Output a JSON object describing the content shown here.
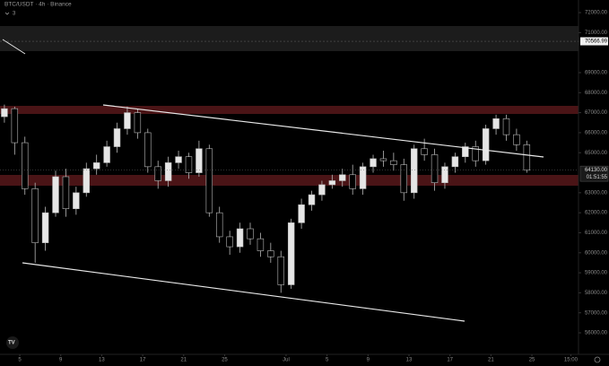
{
  "chart_data": {
    "type": "candlestick",
    "title": "BTC/USDT · 4h · Binance",
    "indicator_count": "3",
    "x": [
      3.5,
      4.5,
      5.5,
      6.5,
      7.5,
      8.5,
      9.5,
      10.5,
      11.5,
      12.5,
      13.5,
      14.5,
      15.5,
      16.5,
      17.5,
      18.5,
      19.5,
      20.5,
      21.5,
      22.5,
      23.5,
      24.5,
      25.5,
      26.5,
      27.5,
      28.5,
      29.5,
      30.5,
      31.5,
      32.5,
      33.5,
      34.5,
      35.5,
      36.5,
      37.5,
      38.5,
      39.5,
      40.5,
      41.5,
      42.5,
      43.5,
      44.5,
      45.5,
      46.5,
      47.5,
      48.5,
      49.5,
      50.5,
      51.5,
      52.5,
      53.5,
      54.5
    ],
    "open": [
      66800,
      67200,
      65500,
      63200,
      60500,
      62000,
      63800,
      62200,
      63000,
      64200,
      64500,
      65300,
      66200,
      67000,
      66000,
      64300,
      63600,
      64500,
      64800,
      64000,
      65200,
      62000,
      60800,
      60300,
      61200,
      60700,
      60100,
      59800,
      58400,
      61500,
      62400,
      62900,
      63400,
      63600,
      63900,
      63200,
      64300,
      64700,
      64600,
      64400,
      63000,
      65200,
      64900,
      63500,
      64300,
      64800,
      65300,
      64600,
      66200,
      66700,
      65900,
      65400
    ],
    "high": [
      67400,
      67300,
      65800,
      63500,
      62300,
      64100,
      64200,
      63300,
      64500,
      64900,
      65600,
      66500,
      67300,
      67200,
      66200,
      64600,
      64800,
      65100,
      65000,
      65600,
      65400,
      62300,
      61100,
      61500,
      61500,
      61000,
      60500,
      60100,
      61700,
      62700,
      63100,
      63600,
      63900,
      64200,
      64400,
      64500,
      64900,
      65100,
      65000,
      64700,
      65400,
      65700,
      65200,
      64500,
      65000,
      65500,
      65600,
      66400,
      66900,
      66900,
      66200,
      65600
    ],
    "low": [
      66500,
      64900,
      62900,
      59500,
      60100,
      61800,
      61800,
      61900,
      62800,
      63900,
      64300,
      65000,
      65900,
      65700,
      64000,
      63200,
      63300,
      64200,
      63700,
      63800,
      61800,
      60500,
      59900,
      60000,
      60400,
      59800,
      59500,
      58000,
      58200,
      61200,
      62100,
      62600,
      63200,
      63300,
      62900,
      62900,
      64000,
      64300,
      64100,
      62600,
      62700,
      64600,
      63100,
      63200,
      64000,
      64500,
      64300,
      64400,
      65900,
      65600,
      65100,
      64000
    ],
    "close": [
      67200,
      65500,
      63200,
      60500,
      62000,
      63800,
      62200,
      63000,
      64200,
      64500,
      65300,
      66200,
      67000,
      66000,
      64300,
      63600,
      64500,
      64800,
      64000,
      65200,
      62000,
      60800,
      60300,
      61200,
      60700,
      60100,
      59800,
      58400,
      61500,
      62400,
      62900,
      63400,
      63600,
      63900,
      63200,
      64300,
      64700,
      64600,
      64400,
      63000,
      65200,
      64900,
      63500,
      64300,
      64800,
      65300,
      64600,
      66200,
      66700,
      65900,
      65400,
      64130
    ],
    "up_color": "#e6e6e6",
    "down_color": "#000000",
    "xlim": [
      3.07,
      59.55
    ],
    "ylim": [
      54925,
      72630
    ],
    "xticks": [
      5,
      9,
      13,
      17,
      21,
      25,
      {
        "value": 31,
        "label": "Jul"
      },
      {
        "value": 35,
        "label": "5"
      },
      {
        "value": 39,
        "label": "9"
      },
      {
        "value": 43,
        "label": "13"
      },
      {
        "value": 47,
        "label": "17"
      },
      {
        "value": 51,
        "label": "21"
      },
      {
        "value": 55,
        "label": "25"
      },
      {
        "value": 58.8,
        "label": "15:00"
      }
    ],
    "yticks": [
      {
        "value": 56000,
        "label": "56000.00"
      },
      {
        "value": 57000,
        "label": "57000.00"
      },
      {
        "value": 58000,
        "label": "58000.00"
      },
      {
        "value": 59000,
        "label": "59000.00"
      },
      {
        "value": 60000,
        "label": "60000.00"
      },
      {
        "value": 61000,
        "label": "61000.00"
      },
      {
        "value": 62000,
        "label": "62000.00"
      },
      {
        "value": 63000,
        "label": "63000.00"
      },
      {
        "value": 65000,
        "label": "65000.00"
      },
      {
        "value": 66000,
        "label": "66000.00"
      },
      {
        "value": 67000,
        "label": "67000.00"
      },
      {
        "value": 68000,
        "label": "68000.00"
      },
      {
        "value": 69000,
        "label": "69000.00"
      },
      {
        "value": 71000,
        "label": "71000.00"
      },
      {
        "value": 72000,
        "label": "72000.00"
      }
    ],
    "marker_price": 70566.99,
    "current_price": {
      "value": 64130,
      "label": "64130.00"
    },
    "countdown": "01:51:55"
  }
}
